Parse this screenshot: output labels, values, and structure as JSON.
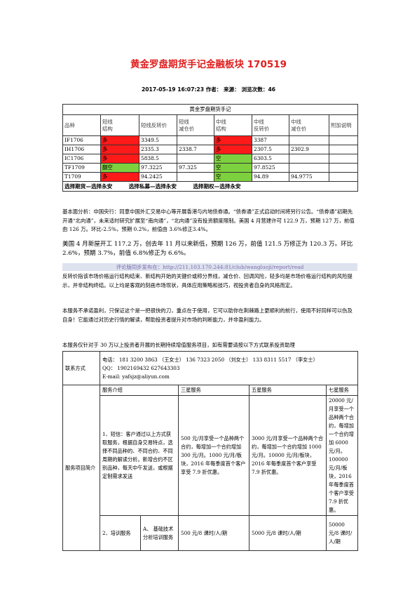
{
  "title": "黄金罗盘期货手记金融板块 170519",
  "meta": "2017-05-19 16:07:23 作者： 来源： 浏览次数：46",
  "table": {
    "caption": "黄金罗盘期货手记",
    "headers": [
      "品种",
      "短线\n结构",
      "短线反转价",
      "短线\n减仓价",
      "中线\n结构",
      "中线\n反转价",
      "中线\n减仓价",
      "附加说明"
    ],
    "rows": [
      [
        "IF1706",
        "多",
        "3349.5",
        "",
        "多",
        "3387",
        "",
        ""
      ],
      [
        "IH1706",
        "多",
        "2335.3",
        "2338.7",
        "多",
        "2307.5",
        "2302.9",
        ""
      ],
      [
        "IC1706",
        "多",
        "5838.5",
        "",
        "空",
        "6303.5",
        "",
        ""
      ],
      [
        "TF1709",
        "翻空",
        "97.3225",
        "97.325",
        "空",
        "97.8525",
        "",
        ""
      ],
      [
        "T1709",
        "多",
        "94.2425",
        "",
        "空",
        "94.89",
        "94.9775",
        ""
      ]
    ]
  },
  "links_row": [
    "选择期货—选择永安",
    "选择私募—选择永安",
    "选择期权—选择永安"
  ],
  "fundamental": "基本面分析：中国央行：同意中国外汇交易中心等开展香港与内地债券通。“债券通”正式启动时间将另行公告。“债券通”初期先开通“北向通”，未来适时研究扩展至“南向通”，“北向通”没有投资额度限制。美国 4 月营建许可 122.9 万，预期 127 万，前值由 126 万。环比-2.5%，预期 0.2%，前值由 3.6%修正3.4%。",
  "fundamental_big": "美国 4 月新屋开工 117.2 万，创去年 11 月以来新低，预期 126 万，前值 121.5 万修正为 120.3 万。环比 2.6%，预期 3.7%，前值 6.8%修正为 6.6%。",
  "review_link": "评论版同步发布在：http://211.103.170.244:81/club/wangluoji/report/read",
  "intro_paras": [
    "反转价指该市场价格运行结构结束、新结构开始的关键价或称分界线，减仓价、回调风险，轻多均是市场价格运行结构的风险提示，并非结构终结。以上均是客观的刻画市场现状，具体应用策略和技巧，视投资者自身的风格而定。",
    "本服务不承诺盈利，只保证这个是一把很快的刀，重点在于使用，它可以助你在荆棘路上更顺利的前行，使用不好同样可以伤及自身！它能通过对历史行情的解读，帮助投资者提升对市场的判断能力，并非盈利能力。",
    "本服务仅针对于 30 万以上投资者开展的长期持续增值服务项目，如有需要请按以下方式联系投资助理"
  ],
  "contact": {
    "label": "联系方式",
    "phone": "电话： 181 3200 3863 （王女士）   136 7323 2050 （刘女士）   133 8311 5517 （李女士）",
    "qq": "QQ：  190216943​2      627643303",
    "email": "E-mail: yafsjz@aliyun.com"
  },
  "service": {
    "label": "服务项目简介",
    "headers": [
      "服务介绍",
      "三星服务",
      "五星服务",
      "七星服务"
    ],
    "row1": {
      "intro": "1、短信：客户通过以上方式获取服务，根据自身交易特点，选择不同品种的、不同合约、不同周期的解读分析。新增合约不区别品种，每天中午发送，或根据定制需求发送",
      "three": "500 元/月享受一个品种两个合约，每增加一个合约增加 300 元/月。1000 元/月/板块，2016 年每季度首个客户享受 7.9 折优惠。",
      "five": "3000 元/月享受一个品种两个合约，每增加一个合约增加 1000 元/月。10000 元/月/板块，2016 年每季度首个客户享受 7.9 折优惠。",
      "seven": "20000 元/月享受一个品种两个合约，每增加一个合约增加 6000 元/月。100000 元/月/板块，2016 年每季度首个客户享受 7.9 折优惠。"
    },
    "row2": {
      "intro": "2、培训服务",
      "sub": "A、 基础技术分析培训服务",
      "three": "500 元/8 课时/人/期",
      "five": "5000 元/8 课时/人/期",
      "seven": "50000 元/8 课时/人/期"
    }
  }
}
